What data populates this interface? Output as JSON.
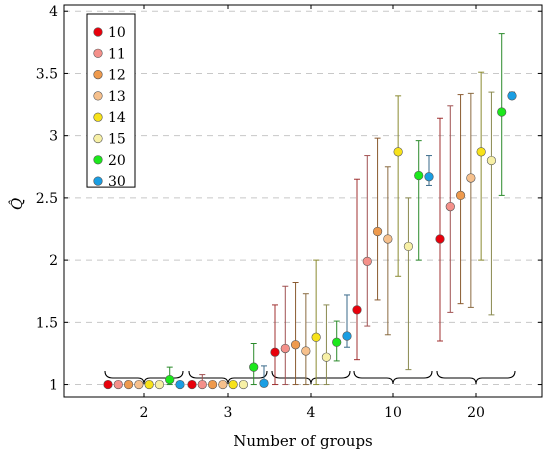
{
  "chart_data": {
    "type": "scatter",
    "xlabel": "Number of groups",
    "ylabel": "Q̂",
    "categories": [
      "2",
      "3",
      "4",
      "10",
      "20"
    ],
    "ylim": [
      0.9,
      4.05
    ],
    "yticks": [
      1,
      1.5,
      2,
      2.5,
      3,
      3.5,
      4
    ],
    "ytick_labels": [
      "1",
      "1.5",
      "2",
      "2.5",
      "3",
      "3.5",
      "4"
    ],
    "grid": "horizontal-dashed",
    "legend_position": "top-left",
    "series": [
      {
        "name": "10",
        "color": "#e8000b",
        "err_color": "#a03030",
        "values": [
          1.0,
          1.0,
          1.26,
          1.6,
          2.17
        ],
        "lower": [
          1.0,
          1.0,
          1.0,
          1.2,
          1.35
        ],
        "upper": [
          1.0,
          1.0,
          1.64,
          2.65,
          3.14
        ]
      },
      {
        "name": "11",
        "color": "#f4908a",
        "err_color": "#a05050",
        "values": [
          1.0,
          1.0,
          1.29,
          1.99,
          2.43
        ],
        "lower": [
          1.0,
          1.0,
          1.0,
          1.47,
          1.58
        ],
        "upper": [
          1.0,
          1.08,
          1.79,
          2.84,
          3.24
        ]
      },
      {
        "name": "12",
        "color": "#ee9a4d",
        "err_color": "#8a5a30",
        "values": [
          1.0,
          1.0,
          1.32,
          2.23,
          2.52
        ],
        "lower": [
          1.0,
          1.0,
          1.0,
          1.68,
          1.65
        ],
        "upper": [
          1.0,
          1.0,
          1.82,
          2.98,
          3.33
        ]
      },
      {
        "name": "13",
        "color": "#f6c08c",
        "err_color": "#8a6a40",
        "values": [
          1.0,
          1.0,
          1.27,
          2.17,
          2.66
        ],
        "lower": [
          1.0,
          1.0,
          1.0,
          1.4,
          1.62
        ],
        "upper": [
          1.0,
          1.0,
          1.73,
          2.75,
          3.34
        ]
      },
      {
        "name": "14",
        "color": "#f7e21a",
        "err_color": "#8a8a30",
        "values": [
          1.0,
          1.0,
          1.38,
          2.87,
          2.87
        ],
        "lower": [
          1.0,
          1.0,
          1.0,
          1.87,
          2.0
        ],
        "upper": [
          1.0,
          1.0,
          2.0,
          3.32,
          3.51
        ]
      },
      {
        "name": "15",
        "color": "#f7f0a6",
        "err_color": "#8a8a50",
        "values": [
          1.0,
          1.0,
          1.22,
          2.11,
          2.8
        ],
        "lower": [
          1.0,
          1.0,
          1.0,
          1.12,
          1.56
        ],
        "upper": [
          1.0,
          1.0,
          1.64,
          2.5,
          3.35
        ]
      },
      {
        "name": "20",
        "color": "#1ce81c",
        "err_color": "#2a8a2a",
        "values": [
          1.04,
          1.14,
          1.34,
          2.68,
          3.19
        ],
        "lower": [
          1.0,
          1.0,
          1.19,
          2.0,
          2.52
        ],
        "upper": [
          1.14,
          1.33,
          1.51,
          2.96,
          3.82
        ]
      },
      {
        "name": "30",
        "color": "#1a9ee3",
        "err_color": "#3a6a8a",
        "values": [
          1.0,
          1.01,
          1.39,
          2.67,
          3.32
        ],
        "lower": [
          1.0,
          1.0,
          1.3,
          2.6,
          3.3
        ],
        "upper": [
          1.0,
          1.15,
          1.72,
          2.84,
          3.35
        ]
      }
    ]
  }
}
